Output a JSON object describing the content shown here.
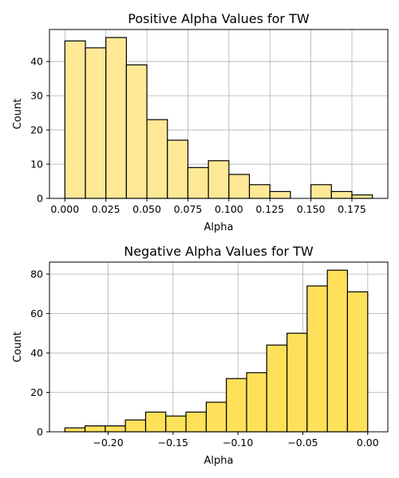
{
  "chart_data": [
    {
      "type": "bar",
      "title": "Positive Alpha Values for TW",
      "xlabel": "Alpha",
      "ylabel": "Count",
      "bin_edges": [
        0.0,
        0.0125,
        0.025,
        0.0375,
        0.05,
        0.0625,
        0.075,
        0.0875,
        0.1,
        0.1125,
        0.125,
        0.1375,
        0.15,
        0.1625,
        0.175,
        0.1875
      ],
      "values": [
        46,
        44,
        47,
        39,
        23,
        17,
        9,
        11,
        7,
        4,
        2,
        0,
        4,
        2,
        1
      ],
      "xlim": [
        -0.0094,
        0.1969
      ],
      "ylim": [
        0,
        49.35
      ],
      "xticks": [
        0.0,
        0.025,
        0.05,
        0.075,
        0.1,
        0.125,
        0.15,
        0.175
      ],
      "xtick_labels": [
        "0.000",
        "0.025",
        "0.050",
        "0.075",
        "0.100",
        "0.125",
        "0.150",
        "0.175"
      ],
      "yticks": [
        0,
        10,
        20,
        30,
        40
      ],
      "ytick_labels": [
        "0",
        "10",
        "20",
        "30",
        "40"
      ],
      "grid": true,
      "color": "#ffe997"
    },
    {
      "type": "bar",
      "title": "Negative Alpha Values for TW",
      "xlabel": "Alpha",
      "ylabel": "Count",
      "bin_edges": [
        -0.2333,
        -0.2178,
        -0.2022,
        -0.1867,
        -0.1711,
        -0.1556,
        -0.14,
        -0.1244,
        -0.1089,
        -0.0933,
        -0.0778,
        -0.0622,
        -0.0467,
        -0.0311,
        -0.0156,
        0.0
      ],
      "values": [
        2,
        3,
        3,
        6,
        10,
        8,
        10,
        15,
        27,
        30,
        44,
        50,
        74,
        82,
        71
      ],
      "xlim": [
        -0.2452,
        0.0155
      ],
      "ylim": [
        0,
        86.1
      ],
      "xticks": [
        -0.2,
        -0.15,
        -0.1,
        -0.05,
        0.0
      ],
      "xtick_labels": [
        "−0.20",
        "−0.15",
        "−0.10",
        "−0.05",
        "0.00"
      ],
      "yticks": [
        0,
        20,
        40,
        60,
        80
      ],
      "ytick_labels": [
        "0",
        "20",
        "40",
        "60",
        "80"
      ],
      "grid": true,
      "color": "#ffe05a"
    }
  ]
}
